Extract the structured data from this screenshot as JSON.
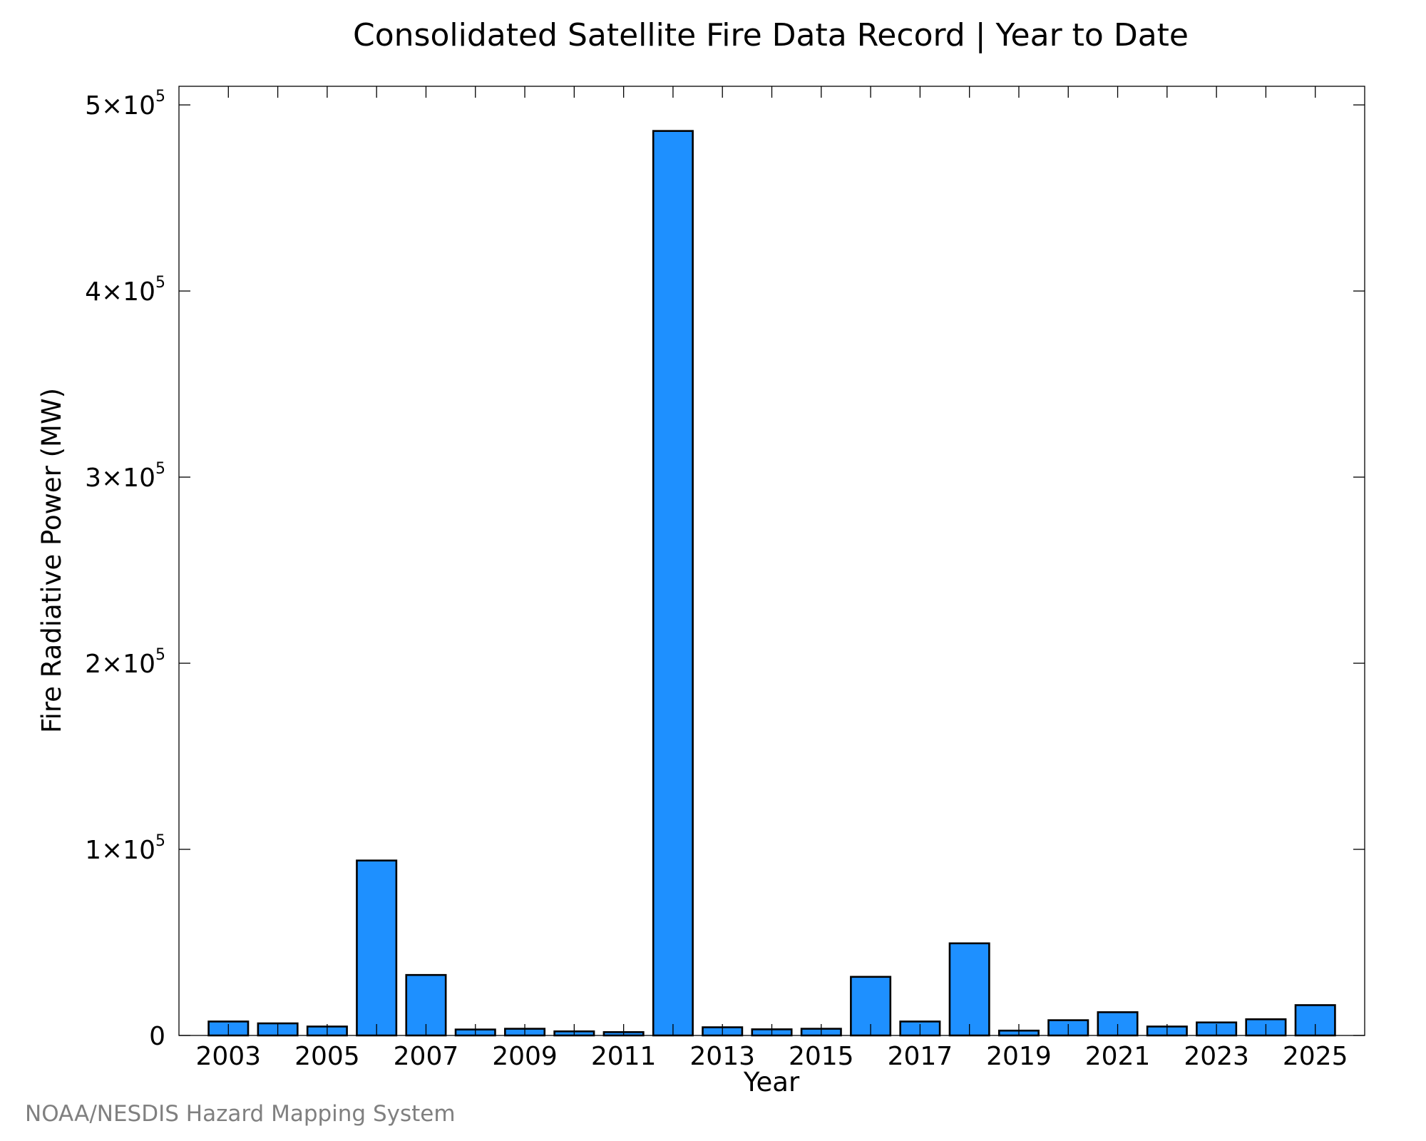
{
  "chart_data": {
    "type": "bar",
    "title": "Consolidated Satellite Fire Data Record | Year to Date",
    "xlabel": "Year",
    "ylabel": "Fire Radiative Power (MW)",
    "credit": "NOAA/NESDIS Hazard Mapping System",
    "categories": [
      2003,
      2004,
      2005,
      2006,
      2007,
      2008,
      2009,
      2010,
      2011,
      2012,
      2013,
      2014,
      2015,
      2016,
      2017,
      2018,
      2019,
      2020,
      2021,
      2022,
      2023,
      2024,
      2025
    ],
    "values": [
      7500,
      6500,
      4800,
      94000,
      32500,
      3200,
      3600,
      2200,
      1800,
      486000,
      4400,
      3300,
      3600,
      31500,
      7500,
      49500,
      2600,
      8200,
      12500,
      4800,
      7000,
      8700,
      16300
    ],
    "xticks": [
      {
        "value": 2003,
        "label": "2003"
      },
      {
        "value": 2005,
        "label": "2005"
      },
      {
        "value": 2007,
        "label": "2007"
      },
      {
        "value": 2009,
        "label": "2009"
      },
      {
        "value": 2011,
        "label": "2011"
      },
      {
        "value": 2013,
        "label": "2013"
      },
      {
        "value": 2015,
        "label": "2015"
      },
      {
        "value": 2017,
        "label": "2017"
      },
      {
        "value": 2019,
        "label": "2019"
      },
      {
        "value": 2021,
        "label": "2021"
      },
      {
        "value": 2023,
        "label": "2023"
      },
      {
        "value": 2025,
        "label": "2025"
      }
    ],
    "yticks": [
      {
        "value": 0,
        "mantissa": "0",
        "exponent": ""
      },
      {
        "value": 100000,
        "mantissa": "1×10",
        "exponent": "5"
      },
      {
        "value": 200000,
        "mantissa": "2×10",
        "exponent": "5"
      },
      {
        "value": 300000,
        "mantissa": "3×10",
        "exponent": "5"
      },
      {
        "value": 400000,
        "mantissa": "4×10",
        "exponent": "5"
      },
      {
        "value": 500000,
        "mantissa": "5×10",
        "exponent": "5"
      }
    ],
    "xlim": [
      2002.0,
      2026.0
    ],
    "ylim": [
      0,
      510000
    ],
    "grid": false,
    "bar_color": "#1E90FF",
    "edge_color": "#000000",
    "credit_color": "#808080"
  }
}
